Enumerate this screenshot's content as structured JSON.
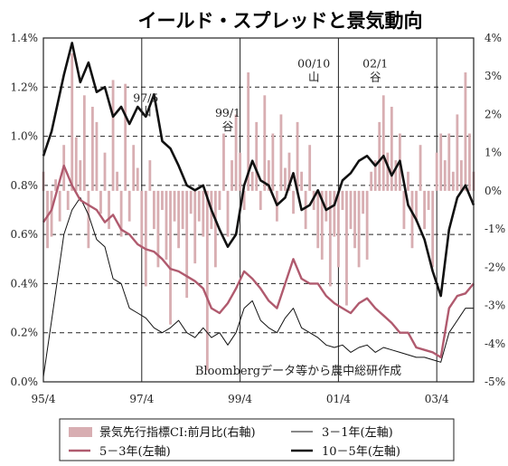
{
  "chart_data": {
    "type": "line",
    "title": "イールド・スプレッドと景気動向",
    "source_note": "Bloombergデータ等から農中総研作成",
    "x_tick_labels": [
      "95/4",
      "97/4",
      "99/4",
      "01/4",
      "03/4"
    ],
    "x_range": [
      "1995-04",
      "2004-01"
    ],
    "y_left": {
      "ticks": [
        "0.0%",
        "0.2%",
        "0.4%",
        "0.6%",
        "0.8%",
        "1.0%",
        "1.2%",
        "1.4%"
      ],
      "range": [
        0,
        1.4
      ]
    },
    "y_right": {
      "ticks": [
        "-5%",
        "-4%",
        "-3%",
        "-2%",
        "-1%",
        "0%",
        "1%",
        "2%",
        "3%",
        "4%"
      ],
      "range": [
        -5,
        4
      ]
    },
    "grid": "horizontal dashed, vertical solid at x ticks",
    "annotations": [
      {
        "date": "1997-05",
        "line1": "97/5",
        "line2": "山",
        "y": 1.14
      },
      {
        "date": "1999-01",
        "line1": "99/1",
        "line2": "谷",
        "y": 1.08
      },
      {
        "date": "2000-10",
        "line1": "00/10",
        "line2": "山",
        "y": 1.28
      },
      {
        "date": "2002-01",
        "line1": "02/1",
        "line2": "谷",
        "y": 1.28
      }
    ],
    "series": [
      {
        "name": "10－5年(左軸)",
        "axis": "left",
        "kind": "line",
        "color": "#111111",
        "width": 2.6,
        "points": [
          [
            "1995-04",
            0.92
          ],
          [
            "1995-06",
            1.02
          ],
          [
            "1995-09",
            1.25
          ],
          [
            "1995-11",
            1.38
          ],
          [
            "1996-01",
            1.22
          ],
          [
            "1996-03",
            1.3
          ],
          [
            "1996-05",
            1.18
          ],
          [
            "1996-07",
            1.2
          ],
          [
            "1996-09",
            1.08
          ],
          [
            "1996-11",
            1.12
          ],
          [
            "1997-01",
            1.05
          ],
          [
            "1997-03",
            1.12
          ],
          [
            "1997-05",
            1.08
          ],
          [
            "1997-07",
            1.17
          ],
          [
            "1997-09",
            0.98
          ],
          [
            "1997-11",
            0.95
          ],
          [
            "1998-01",
            0.88
          ],
          [
            "1998-03",
            0.8
          ],
          [
            "1998-05",
            0.78
          ],
          [
            "1998-07",
            0.8
          ],
          [
            "1998-09",
            0.7
          ],
          [
            "1998-11",
            0.62
          ],
          [
            "1999-01",
            0.55
          ],
          [
            "1999-03",
            0.6
          ],
          [
            "1999-05",
            0.8
          ],
          [
            "1999-07",
            0.9
          ],
          [
            "1999-09",
            0.82
          ],
          [
            "1999-11",
            0.8
          ],
          [
            "2000-01",
            0.72
          ],
          [
            "2000-03",
            0.75
          ],
          [
            "2000-05",
            0.85
          ],
          [
            "2000-07",
            0.7
          ],
          [
            "2000-09",
            0.72
          ],
          [
            "2000-11",
            0.78
          ],
          [
            "2001-01",
            0.7
          ],
          [
            "2001-03",
            0.72
          ],
          [
            "2001-05",
            0.82
          ],
          [
            "2001-07",
            0.85
          ],
          [
            "2001-09",
            0.9
          ],
          [
            "2001-11",
            0.92
          ],
          [
            "2002-01",
            0.88
          ],
          [
            "2002-03",
            0.92
          ],
          [
            "2002-05",
            0.84
          ],
          [
            "2002-07",
            0.9
          ],
          [
            "2002-09",
            0.72
          ],
          [
            "2002-11",
            0.66
          ],
          [
            "2003-01",
            0.58
          ],
          [
            "2003-03",
            0.45
          ],
          [
            "2003-05",
            0.35
          ],
          [
            "2003-07",
            0.62
          ],
          [
            "2003-09",
            0.75
          ],
          [
            "2003-11",
            0.8
          ],
          [
            "2004-01",
            0.72
          ]
        ]
      },
      {
        "name": "5－3年(左軸)",
        "axis": "left",
        "kind": "line",
        "color": "#b05a6e",
        "width": 2.4,
        "points": [
          [
            "1995-04",
            0.65
          ],
          [
            "1995-06",
            0.7
          ],
          [
            "1995-09",
            0.88
          ],
          [
            "1995-11",
            0.8
          ],
          [
            "1996-01",
            0.74
          ],
          [
            "1996-03",
            0.72
          ],
          [
            "1996-05",
            0.7
          ],
          [
            "1996-07",
            0.65
          ],
          [
            "1996-09",
            0.68
          ],
          [
            "1996-11",
            0.62
          ],
          [
            "1997-01",
            0.6
          ],
          [
            "1997-03",
            0.56
          ],
          [
            "1997-05",
            0.54
          ],
          [
            "1997-07",
            0.53
          ],
          [
            "1997-09",
            0.5
          ],
          [
            "1997-11",
            0.46
          ],
          [
            "1998-01",
            0.45
          ],
          [
            "1998-03",
            0.43
          ],
          [
            "1998-05",
            0.41
          ],
          [
            "1998-07",
            0.38
          ],
          [
            "1998-09",
            0.3
          ],
          [
            "1998-11",
            0.28
          ],
          [
            "1999-01",
            0.32
          ],
          [
            "1999-03",
            0.38
          ],
          [
            "1999-05",
            0.45
          ],
          [
            "1999-07",
            0.42
          ],
          [
            "1999-09",
            0.38
          ],
          [
            "1999-11",
            0.33
          ],
          [
            "2000-01",
            0.3
          ],
          [
            "2000-03",
            0.4
          ],
          [
            "2000-05",
            0.5
          ],
          [
            "2000-07",
            0.42
          ],
          [
            "2000-09",
            0.4
          ],
          [
            "2000-11",
            0.4
          ],
          [
            "2001-01",
            0.35
          ],
          [
            "2001-03",
            0.32
          ],
          [
            "2001-05",
            0.3
          ],
          [
            "2001-07",
            0.28
          ],
          [
            "2001-09",
            0.32
          ],
          [
            "2001-11",
            0.34
          ],
          [
            "2002-01",
            0.3
          ],
          [
            "2002-03",
            0.27
          ],
          [
            "2002-05",
            0.24
          ],
          [
            "2002-07",
            0.2
          ],
          [
            "2002-09",
            0.2
          ],
          [
            "2002-11",
            0.14
          ],
          [
            "2003-01",
            0.13
          ],
          [
            "2003-03",
            0.12
          ],
          [
            "2003-05",
            0.1
          ],
          [
            "2003-07",
            0.3
          ],
          [
            "2003-09",
            0.35
          ],
          [
            "2003-11",
            0.36
          ],
          [
            "2004-01",
            0.4
          ]
        ]
      },
      {
        "name": "3－1年(左軸)",
        "axis": "left",
        "kind": "line",
        "color": "#111111",
        "width": 1.0,
        "points": [
          [
            "1995-04",
            0.02
          ],
          [
            "1995-06",
            0.25
          ],
          [
            "1995-09",
            0.6
          ],
          [
            "1995-11",
            0.7
          ],
          [
            "1996-01",
            0.75
          ],
          [
            "1996-03",
            0.68
          ],
          [
            "1996-05",
            0.58
          ],
          [
            "1996-07",
            0.55
          ],
          [
            "1996-09",
            0.42
          ],
          [
            "1996-11",
            0.4
          ],
          [
            "1997-01",
            0.3
          ],
          [
            "1997-03",
            0.28
          ],
          [
            "1997-05",
            0.26
          ],
          [
            "1997-07",
            0.22
          ],
          [
            "1997-09",
            0.2
          ],
          [
            "1997-11",
            0.22
          ],
          [
            "1998-01",
            0.25
          ],
          [
            "1998-03",
            0.2
          ],
          [
            "1998-05",
            0.18
          ],
          [
            "1998-07",
            0.22
          ],
          [
            "1998-09",
            0.18
          ],
          [
            "1998-11",
            0.2
          ],
          [
            "1999-01",
            0.15
          ],
          [
            "1999-03",
            0.2
          ],
          [
            "1999-05",
            0.3
          ],
          [
            "1999-07",
            0.33
          ],
          [
            "1999-09",
            0.25
          ],
          [
            "1999-11",
            0.22
          ],
          [
            "2000-01",
            0.2
          ],
          [
            "2000-03",
            0.26
          ],
          [
            "2000-05",
            0.3
          ],
          [
            "2000-07",
            0.22
          ],
          [
            "2000-09",
            0.2
          ],
          [
            "2000-11",
            0.18
          ],
          [
            "2001-01",
            0.15
          ],
          [
            "2001-03",
            0.14
          ],
          [
            "2001-05",
            0.15
          ],
          [
            "2001-07",
            0.12
          ],
          [
            "2001-09",
            0.14
          ],
          [
            "2001-11",
            0.15
          ],
          [
            "2002-01",
            0.12
          ],
          [
            "2002-03",
            0.14
          ],
          [
            "2002-05",
            0.13
          ],
          [
            "2002-07",
            0.12
          ],
          [
            "2002-09",
            0.11
          ],
          [
            "2002-11",
            0.1
          ],
          [
            "2003-01",
            0.1
          ],
          [
            "2003-03",
            0.09
          ],
          [
            "2003-05",
            0.08
          ],
          [
            "2003-07",
            0.2
          ],
          [
            "2003-09",
            0.25
          ],
          [
            "2003-11",
            0.3
          ],
          [
            "2004-01",
            0.3
          ]
        ]
      },
      {
        "name": "景気先行指標CI:前月比(右軸)",
        "axis": "right",
        "kind": "bar",
        "color": "#d8aeb2",
        "points": [
          [
            "1995-04",
            0.5
          ],
          [
            "1995-05",
            -1.5
          ],
          [
            "1995-06",
            -1.2
          ],
          [
            "1995-07",
            0.3
          ],
          [
            "1995-08",
            -0.8
          ],
          [
            "1995-09",
            1.2
          ],
          [
            "1995-10",
            -0.5
          ],
          [
            "1995-11",
            3.6
          ],
          [
            "1995-12",
            1.4
          ],
          [
            "1996-01",
            0.8
          ],
          [
            "1996-02",
            2.5
          ],
          [
            "1996-03",
            -1.5
          ],
          [
            "1996-04",
            2.2
          ],
          [
            "1996-05",
            1.8
          ],
          [
            "1996-06",
            -0.6
          ],
          [
            "1996-07",
            1.0
          ],
          [
            "1996-08",
            -1.0
          ],
          [
            "1996-09",
            2.9
          ],
          [
            "1996-10",
            0.5
          ],
          [
            "1996-11",
            -1.2
          ],
          [
            "1996-12",
            2.8
          ],
          [
            "1997-01",
            -0.8
          ],
          [
            "1997-02",
            1.2
          ],
          [
            "1997-03",
            0.6
          ],
          [
            "1997-04",
            -1.5
          ],
          [
            "1997-05",
            -2.5
          ],
          [
            "1997-06",
            0.8
          ],
          [
            "1997-07",
            -1.0
          ],
          [
            "1997-08",
            -2.0
          ],
          [
            "1997-09",
            -0.5
          ],
          [
            "1997-10",
            -1.8
          ],
          [
            "1997-11",
            -3.5
          ],
          [
            "1997-12",
            -0.8
          ],
          [
            "1998-01",
            -1.5
          ],
          [
            "1998-02",
            -1.0
          ],
          [
            "1998-03",
            -2.8
          ],
          [
            "1998-04",
            -0.6
          ],
          [
            "1998-05",
            -1.9
          ],
          [
            "1998-06",
            -0.8
          ],
          [
            "1998-07",
            -1.2
          ],
          [
            "1998-08",
            -4.7
          ],
          [
            "1998-09",
            -1.0
          ],
          [
            "1998-10",
            -2.0
          ],
          [
            "1998-11",
            -0.5
          ],
          [
            "1998-12",
            1.5
          ],
          [
            "1999-01",
            -1.2
          ],
          [
            "1999-02",
            0.8
          ],
          [
            "1999-03",
            2.0
          ],
          [
            "1999-04",
            1.0
          ],
          [
            "1999-05",
            -0.5
          ],
          [
            "1999-06",
            3.1
          ],
          [
            "1999-07",
            0.5
          ],
          [
            "1999-08",
            1.8
          ],
          [
            "1999-09",
            -0.5
          ],
          [
            "1999-10",
            2.5
          ],
          [
            "1999-11",
            0.8
          ],
          [
            "1999-12",
            1.5
          ],
          [
            "2000-01",
            -0.8
          ],
          [
            "2000-02",
            2.0
          ],
          [
            "2000-03",
            0.6
          ],
          [
            "2000-04",
            1.0
          ],
          [
            "2000-05",
            -0.6
          ],
          [
            "2000-06",
            1.8
          ],
          [
            "2000-07",
            0.5
          ],
          [
            "2000-08",
            -1.0
          ],
          [
            "2000-09",
            1.2
          ],
          [
            "2000-10",
            -0.5
          ],
          [
            "2000-11",
            -1.5
          ],
          [
            "2000-12",
            -1.8
          ],
          [
            "2001-01",
            -0.8
          ],
          [
            "2001-02",
            -2.5
          ],
          [
            "2001-03",
            -1.2
          ],
          [
            "2001-04",
            -2.0
          ],
          [
            "2001-05",
            -0.5
          ],
          [
            "2001-06",
            -3.0
          ],
          [
            "2001-07",
            -1.0
          ],
          [
            "2001-08",
            -1.5
          ],
          [
            "2001-09",
            -2.0
          ],
          [
            "2001-10",
            -0.6
          ],
          [
            "2001-11",
            -1.8
          ],
          [
            "2001-12",
            0.5
          ],
          [
            "2002-01",
            0.8
          ],
          [
            "2002-02",
            1.8
          ],
          [
            "2002-03",
            2.5
          ],
          [
            "2002-04",
            1.0
          ],
          [
            "2002-05",
            2.2
          ],
          [
            "2002-06",
            0.8
          ],
          [
            "2002-07",
            1.5
          ],
          [
            "2002-08",
            -1.0
          ],
          [
            "2002-09",
            0.5
          ],
          [
            "2002-10",
            -1.5
          ],
          [
            "2002-11",
            -0.8
          ],
          [
            "2002-12",
            1.2
          ],
          [
            "2003-01",
            -1.0
          ],
          [
            "2003-02",
            -0.5
          ],
          [
            "2003-03",
            -2.0
          ],
          [
            "2003-04",
            1.0
          ],
          [
            "2003-05",
            1.5
          ],
          [
            "2003-06",
            0.8
          ],
          [
            "2003-07",
            1.5
          ],
          [
            "2003-08",
            0.5
          ],
          [
            "2003-09",
            2.0
          ],
          [
            "2003-10",
            0.8
          ],
          [
            "2003-11",
            3.1
          ],
          [
            "2003-12",
            1.5
          ],
          [
            "2004-01",
            0.5
          ]
        ]
      }
    ],
    "legend": {
      "placement": "bottom",
      "items": [
        {
          "label": "景気先行指標CI:前月比(右軸)",
          "kind": "bar",
          "color": "#d8aeb2"
        },
        {
          "label": "3－1年(左軸)",
          "kind": "line",
          "color": "#111111",
          "width": 1.0
        },
        {
          "label": "5－3年(左軸)",
          "kind": "line",
          "color": "#b05a6e",
          "width": 2.4
        },
        {
          "label": "10－5年(左軸)",
          "kind": "line",
          "color": "#111111",
          "width": 2.6
        }
      ]
    }
  }
}
